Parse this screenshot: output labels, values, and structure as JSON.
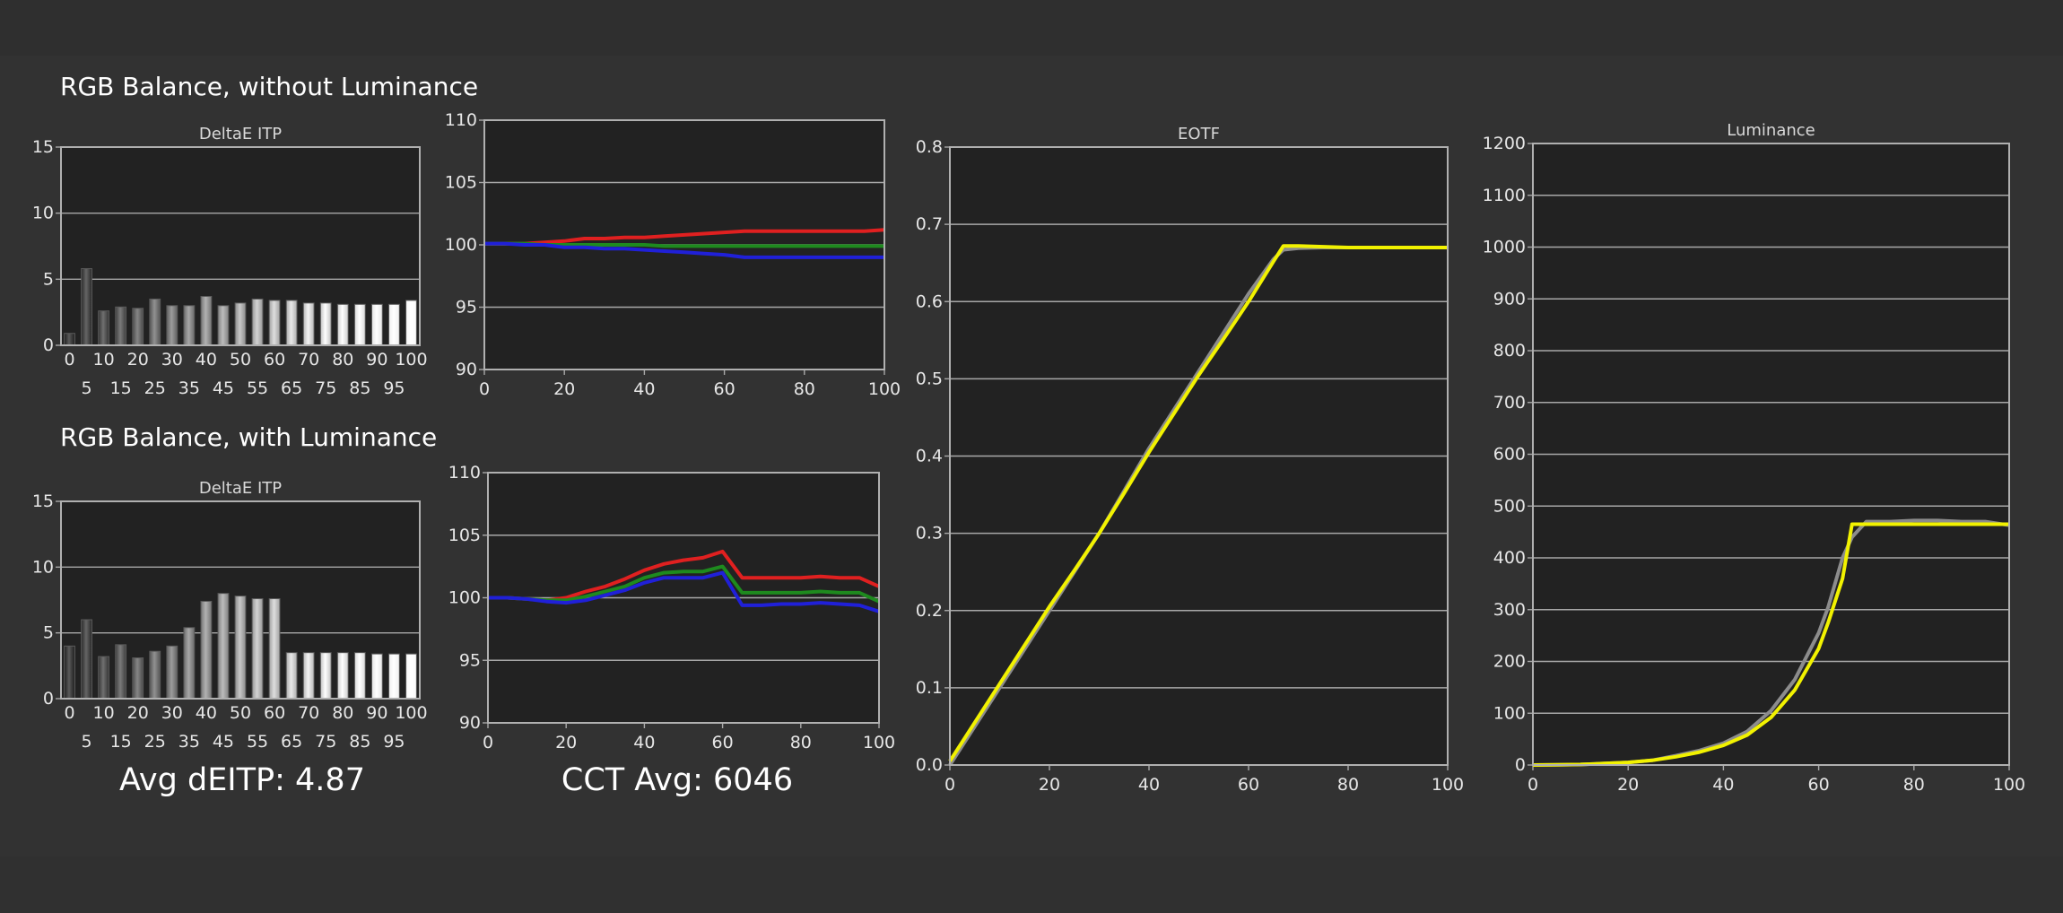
{
  "sections": {
    "without_luminance": "RGB Balance, without Luminance",
    "with_luminance": "RGB Balance, with Luminance"
  },
  "summary": {
    "avg_deitp": "Avg dEITP: 4.87",
    "cct_avg": "CCT Avg: 6046"
  },
  "colors": {
    "red": "#e02020",
    "green": "#1e8a1e",
    "blue": "#2020d8",
    "target": "#8c8c8c",
    "measured": "#f2f200"
  },
  "chart_data": [
    {
      "id": "deltae-top",
      "type": "bar",
      "title": "DeltaE ITP",
      "categories": [
        "0",
        "5",
        "10",
        "15",
        "20",
        "25",
        "30",
        "35",
        "40",
        "45",
        "50",
        "55",
        "60",
        "65",
        "70",
        "75",
        "80",
        "85",
        "90",
        "95",
        "100"
      ],
      "values": [
        0.9,
        5.8,
        2.6,
        2.9,
        2.8,
        3.5,
        3.0,
        3.0,
        3.7,
        3.0,
        3.2,
        3.5,
        3.4,
        3.4,
        3.2,
        3.2,
        3.1,
        3.1,
        3.1,
        3.1,
        3.4
      ],
      "ylim": [
        0,
        15
      ],
      "yticks": [
        0,
        5,
        10,
        15
      ],
      "grid": true
    },
    {
      "id": "rgb-top",
      "type": "line",
      "title": "",
      "xlim": [
        0,
        100
      ],
      "ylim": [
        90,
        110
      ],
      "xticks": [
        0,
        20,
        40,
        60,
        80,
        100
      ],
      "yticks": [
        90,
        95,
        100,
        105,
        110
      ],
      "x": [
        0,
        5,
        10,
        15,
        20,
        25,
        30,
        35,
        40,
        45,
        50,
        55,
        60,
        65,
        70,
        75,
        80,
        85,
        90,
        95,
        100
      ],
      "series": [
        {
          "color": "red",
          "values": [
            100.1,
            100.1,
            100.1,
            100.2,
            100.3,
            100.5,
            100.5,
            100.6,
            100.6,
            100.7,
            100.8,
            100.9,
            101.0,
            101.1,
            101.1,
            101.1,
            101.1,
            101.1,
            101.1,
            101.1,
            101.2
          ]
        },
        {
          "color": "green",
          "values": [
            100.1,
            100.1,
            100.1,
            100.0,
            100.0,
            100.0,
            100.0,
            100.0,
            100.0,
            99.9,
            99.9,
            99.9,
            99.9,
            99.9,
            99.9,
            99.9,
            99.9,
            99.9,
            99.9,
            99.9,
            99.9
          ]
        },
        {
          "color": "blue",
          "values": [
            100.1,
            100.1,
            100.0,
            100.0,
            99.8,
            99.8,
            99.7,
            99.7,
            99.6,
            99.5,
            99.4,
            99.3,
            99.2,
            99.0,
            99.0,
            99.0,
            99.0,
            99.0,
            99.0,
            99.0,
            99.0
          ]
        }
      ],
      "grid": true
    },
    {
      "id": "deltae-bottom",
      "type": "bar",
      "title": "DeltaE ITP",
      "categories": [
        "0",
        "5",
        "10",
        "15",
        "20",
        "25",
        "30",
        "35",
        "40",
        "45",
        "50",
        "55",
        "60",
        "65",
        "70",
        "75",
        "80",
        "85",
        "90",
        "95",
        "100"
      ],
      "values": [
        4.0,
        6.0,
        3.2,
        4.1,
        3.1,
        3.6,
        4.0,
        5.4,
        7.4,
        8.0,
        7.8,
        7.6,
        7.6,
        3.5,
        3.5,
        3.5,
        3.5,
        3.5,
        3.4,
        3.4,
        3.4
      ],
      "ylim": [
        0,
        15
      ],
      "yticks": [
        0,
        5,
        10,
        15
      ],
      "grid": true
    },
    {
      "id": "rgb-bottom",
      "type": "line",
      "title": "",
      "xlim": [
        0,
        100
      ],
      "ylim": [
        90,
        110
      ],
      "xticks": [
        0,
        20,
        40,
        60,
        80,
        100
      ],
      "yticks": [
        90,
        95,
        100,
        105,
        110
      ],
      "x": [
        0,
        5,
        10,
        15,
        20,
        25,
        30,
        35,
        40,
        45,
        50,
        55,
        60,
        65,
        70,
        75,
        80,
        85,
        90,
        95,
        100
      ],
      "series": [
        {
          "color": "red",
          "values": [
            100.0,
            100.0,
            99.9,
            99.8,
            100.0,
            100.5,
            100.9,
            101.5,
            102.2,
            102.7,
            103.0,
            103.2,
            103.7,
            101.6,
            101.6,
            101.6,
            101.6,
            101.7,
            101.6,
            101.6,
            100.9
          ]
        },
        {
          "color": "green",
          "values": [
            100.0,
            100.0,
            99.9,
            99.8,
            99.8,
            100.1,
            100.5,
            100.9,
            101.6,
            102.0,
            102.1,
            102.1,
            102.5,
            100.4,
            100.4,
            100.4,
            100.4,
            100.5,
            100.4,
            100.4,
            99.7
          ]
        },
        {
          "color": "blue",
          "values": [
            100.0,
            100.0,
            99.9,
            99.7,
            99.6,
            99.8,
            100.2,
            100.6,
            101.2,
            101.6,
            101.6,
            101.6,
            102.0,
            99.4,
            99.4,
            99.5,
            99.5,
            99.6,
            99.5,
            99.4,
            98.9
          ]
        }
      ],
      "grid": true
    },
    {
      "id": "eotf",
      "type": "line",
      "title": "EOTF",
      "xlim": [
        0,
        100
      ],
      "ylim": [
        0,
        0.8
      ],
      "xticks": [
        0,
        20,
        40,
        60,
        80,
        100
      ],
      "yticks": [
        0,
        0.1,
        0.2,
        0.3,
        0.4,
        0.5,
        0.6,
        0.7,
        0.8
      ],
      "x": [
        0,
        5,
        10,
        15,
        20,
        25,
        30,
        35,
        40,
        45,
        50,
        55,
        60,
        65,
        67,
        70,
        75,
        80,
        85,
        90,
        95,
        100
      ],
      "series": [
        {
          "color": "target",
          "values": [
            0,
            0.05,
            0.1,
            0.15,
            0.2,
            0.25,
            0.3,
            0.355,
            0.41,
            0.46,
            0.51,
            0.56,
            0.61,
            0.655,
            0.667,
            0.669,
            0.67,
            0.67,
            0.67,
            0.67,
            0.67,
            0.67
          ]
        },
        {
          "color": "measured",
          "values": [
            0.005,
            0.055,
            0.105,
            0.155,
            0.205,
            0.252,
            0.3,
            0.352,
            0.405,
            0.455,
            0.505,
            0.552,
            0.6,
            0.652,
            0.672,
            0.672,
            0.671,
            0.67,
            0.67,
            0.67,
            0.67,
            0.67
          ]
        }
      ],
      "grid": true
    },
    {
      "id": "luminance",
      "type": "line",
      "title": "Luminance",
      "xlim": [
        0,
        100
      ],
      "ylim": [
        0,
        1200
      ],
      "xticks": [
        0,
        20,
        40,
        60,
        80,
        100
      ],
      "yticks": [
        0,
        100,
        200,
        300,
        400,
        500,
        600,
        700,
        800,
        900,
        1000,
        1100,
        1200
      ],
      "x": [
        0,
        5,
        10,
        15,
        20,
        25,
        30,
        35,
        40,
        45,
        50,
        55,
        60,
        62,
        65,
        67,
        70,
        75,
        80,
        85,
        90,
        95,
        100
      ],
      "series": [
        {
          "color": "target",
          "values": [
            0,
            0.5,
            1,
            3,
            5,
            9,
            18,
            28,
            42,
            65,
            105,
            165,
            255,
            305,
            400,
            440,
            470,
            470,
            472,
            472,
            470,
            470,
            463
          ]
        },
        {
          "color": "measured",
          "values": [
            0,
            0.5,
            1,
            3,
            5,
            9,
            16,
            25,
            38,
            58,
            92,
            145,
            225,
            275,
            360,
            465,
            465,
            465,
            465,
            465,
            465,
            465,
            465
          ]
        }
      ],
      "grid": true
    }
  ]
}
